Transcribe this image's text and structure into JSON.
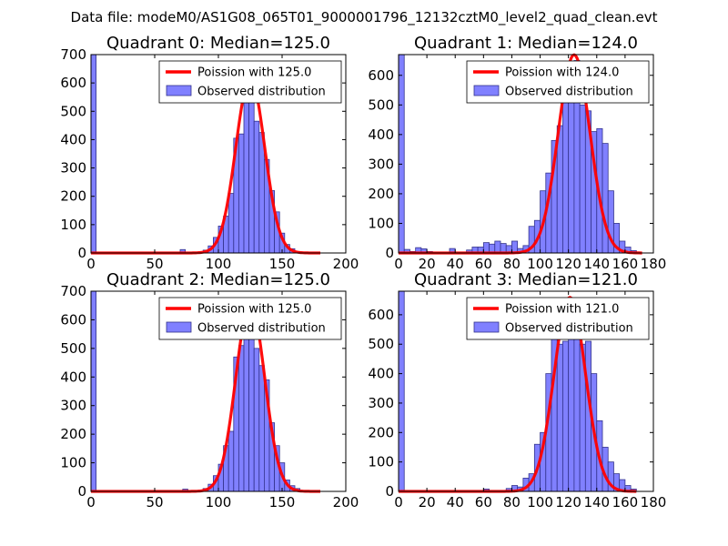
{
  "figure": {
    "suptitle": "Data file: modeM0/AS1G08_065T01_9000001796_12132cztM0_level2_quad_clean.evt"
  },
  "colors": {
    "hist_fill": "#8080ff",
    "hist_edge": "#33338c",
    "curve": "#ff0000"
  },
  "chart_data": [
    {
      "type": "bar",
      "title": "Quadrant 0: Median=125.0",
      "median": 125.0,
      "xlim": [
        0,
        200
      ],
      "ylim": [
        0,
        700
      ],
      "xticks": [
        0,
        50,
        100,
        150,
        200
      ],
      "yticks": [
        0,
        100,
        200,
        300,
        400,
        500,
        600,
        700
      ],
      "xlabel": "",
      "ylabel": "",
      "legend": [
        "Poission with 125.0",
        "Observed distribution"
      ],
      "legend_position": "top-right",
      "curve_end": 180,
      "bins": [
        [
          0,
          4,
          710
        ],
        [
          70,
          74,
          12
        ],
        [
          88,
          92,
          10
        ],
        [
          92,
          96,
          25
        ],
        [
          96,
          100,
          55
        ],
        [
          100,
          104,
          95
        ],
        [
          104,
          108,
          130
        ],
        [
          108,
          112,
          210
        ],
        [
          112,
          116,
          405
        ],
        [
          116,
          120,
          420
        ],
        [
          120,
          124,
          530
        ],
        [
          124,
          128,
          600
        ],
        [
          128,
          132,
          465
        ],
        [
          132,
          136,
          425
        ],
        [
          136,
          140,
          330
        ],
        [
          140,
          144,
          220
        ],
        [
          144,
          148,
          145
        ],
        [
          148,
          152,
          70
        ],
        [
          152,
          156,
          30
        ],
        [
          156,
          160,
          15
        ],
        [
          160,
          164,
          5
        ]
      ]
    },
    {
      "type": "bar",
      "title": "Quadrant 1: Median=124.0",
      "median": 124.0,
      "xlim": [
        0,
        180
      ],
      "ylim": [
        0,
        670
      ],
      "xticks": [
        0,
        20,
        40,
        60,
        80,
        100,
        120,
        140,
        160,
        180
      ],
      "yticks": [
        0,
        100,
        200,
        300,
        400,
        500,
        600
      ],
      "xlabel": "",
      "ylabel": "",
      "legend": [
        "Poission with 124.0",
        "Observed distribution"
      ],
      "legend_position": "top-right",
      "curve_end": 172,
      "bins": [
        [
          0,
          4,
          670
        ],
        [
          4,
          8,
          12
        ],
        [
          8,
          12,
          5
        ],
        [
          12,
          16,
          18
        ],
        [
          16,
          20,
          14
        ],
        [
          20,
          24,
          5
        ],
        [
          36,
          40,
          15
        ],
        [
          48,
          52,
          10
        ],
        [
          52,
          56,
          20
        ],
        [
          56,
          60,
          20
        ],
        [
          60,
          64,
          35
        ],
        [
          64,
          68,
          30
        ],
        [
          68,
          72,
          40
        ],
        [
          72,
          76,
          32
        ],
        [
          76,
          80,
          25
        ],
        [
          80,
          84,
          40
        ],
        [
          84,
          88,
          15
        ],
        [
          88,
          92,
          25
        ],
        [
          92,
          96,
          90
        ],
        [
          96,
          100,
          110
        ],
        [
          100,
          104,
          210
        ],
        [
          104,
          108,
          270
        ],
        [
          108,
          112,
          380
        ],
        [
          112,
          116,
          430
        ],
        [
          116,
          120,
          550
        ],
        [
          120,
          124,
          600
        ],
        [
          124,
          128,
          650
        ],
        [
          128,
          132,
          500
        ],
        [
          132,
          136,
          480
        ],
        [
          136,
          140,
          410
        ],
        [
          140,
          144,
          420
        ],
        [
          144,
          148,
          370
        ],
        [
          148,
          152,
          210
        ],
        [
          152,
          156,
          100
        ],
        [
          156,
          160,
          40
        ],
        [
          160,
          164,
          20
        ],
        [
          164,
          168,
          8
        ]
      ]
    },
    {
      "type": "bar",
      "title": "Quadrant 2: Median=125.0",
      "median": 125.0,
      "xlim": [
        0,
        200
      ],
      "ylim": [
        0,
        700
      ],
      "xticks": [
        0,
        50,
        100,
        150,
        200
      ],
      "yticks": [
        0,
        100,
        200,
        300,
        400,
        500,
        600,
        700
      ],
      "xlabel": "",
      "ylabel": "",
      "legend": [
        "Poission with 125.0",
        "Observed distribution"
      ],
      "legend_position": "top-right",
      "curve_end": 180,
      "bins": [
        [
          0,
          4,
          700
        ],
        [
          72,
          76,
          8
        ],
        [
          88,
          92,
          10
        ],
        [
          92,
          96,
          25
        ],
        [
          96,
          100,
          55
        ],
        [
          100,
          104,
          95
        ],
        [
          104,
          108,
          160
        ],
        [
          108,
          112,
          210
        ],
        [
          112,
          116,
          470
        ],
        [
          116,
          120,
          510
        ],
        [
          120,
          124,
          570
        ],
        [
          124,
          128,
          640
        ],
        [
          128,
          132,
          500
        ],
        [
          132,
          136,
          440
        ],
        [
          136,
          140,
          390
        ],
        [
          140,
          144,
          240
        ],
        [
          144,
          148,
          160
        ],
        [
          148,
          152,
          100
        ],
        [
          152,
          156,
          40
        ],
        [
          156,
          160,
          20
        ],
        [
          160,
          164,
          10
        ]
      ]
    },
    {
      "type": "bar",
      "title": "Quadrant 3: Median=121.0",
      "median": 121.0,
      "xlim": [
        0,
        180
      ],
      "ylim": [
        0,
        680
      ],
      "xticks": [
        0,
        20,
        40,
        60,
        80,
        100,
        120,
        140,
        160,
        180
      ],
      "yticks": [
        0,
        100,
        200,
        300,
        400,
        500,
        600
      ],
      "xlabel": "",
      "ylabel": "",
      "legend": [
        "Poission with 121.0",
        "Observed distribution"
      ],
      "legend_position": "top-right",
      "curve_end": 168,
      "bins": [
        [
          0,
          4,
          690
        ],
        [
          60,
          64,
          8
        ],
        [
          76,
          80,
          10
        ],
        [
          80,
          84,
          20
        ],
        [
          84,
          88,
          15
        ],
        [
          88,
          92,
          45
        ],
        [
          92,
          96,
          60
        ],
        [
          96,
          100,
          160
        ],
        [
          100,
          104,
          200
        ],
        [
          104,
          108,
          400
        ],
        [
          108,
          112,
          540
        ],
        [
          112,
          116,
          500
        ],
        [
          116,
          120,
          510
        ],
        [
          120,
          124,
          560
        ],
        [
          124,
          128,
          640
        ],
        [
          128,
          132,
          500
        ],
        [
          132,
          136,
          510
        ],
        [
          136,
          140,
          400
        ],
        [
          140,
          144,
          240
        ],
        [
          144,
          148,
          150
        ],
        [
          148,
          152,
          100
        ],
        [
          152,
          156,
          60
        ],
        [
          156,
          160,
          40
        ],
        [
          160,
          164,
          20
        ],
        [
          164,
          168,
          8
        ]
      ]
    }
  ]
}
